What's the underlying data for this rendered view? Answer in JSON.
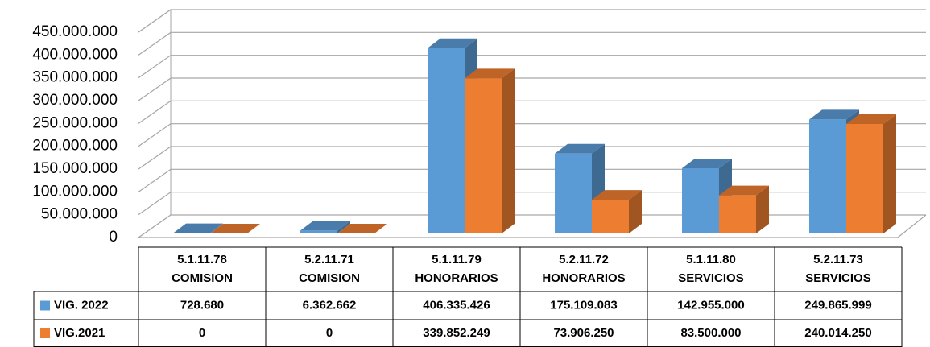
{
  "chart_data": {
    "type": "bar3d",
    "categories": [
      [
        "5.1.11.78",
        "COMISION"
      ],
      [
        "5.2.11.71",
        "COMISION"
      ],
      [
        "5.1.11.79",
        "HONORARIOS"
      ],
      [
        "5.2.11.72",
        "HONORARIOS"
      ],
      [
        "5.1.11.80",
        "SERVICIOS"
      ],
      [
        "5.2.11.73",
        "SERVICIOS"
      ]
    ],
    "series": [
      {
        "name": "VIG. 2022",
        "color": "#5b9bd5",
        "values": [
          728680,
          6362662,
          406335426,
          175109083,
          142955000,
          249865999
        ],
        "value_labels": [
          "728.680",
          "6.362.662",
          "406.335.426",
          "175.109.083",
          "142.955.000",
          "249.865.999"
        ]
      },
      {
        "name": "VIG.2021",
        "color": "#ed7d31",
        "values": [
          0,
          0,
          339852249,
          73906250,
          83500000,
          240014250
        ],
        "value_labels": [
          "0",
          "0",
          "339.852.249",
          "73.906.250",
          "83.500.000",
          "240.014.250"
        ]
      }
    ],
    "ylim": [
      0,
      450000000
    ],
    "yticks": [
      0,
      {
        "value": 50000000,
        "label": "50.000.000"
      },
      {
        "value": 100000000,
        "label": "100.000.000"
      },
      {
        "value": 150000000,
        "label": "150.000.000"
      },
      {
        "value": 200000000,
        "label": "200.000.000"
      },
      {
        "value": 250000000,
        "label": "250.000.000"
      },
      {
        "value": 300000000,
        "label": "300.000.000"
      },
      {
        "value": 350000000,
        "label": "350.000.000"
      },
      {
        "value": 400000000,
        "label": "400.000.000"
      },
      {
        "value": 450000000,
        "label": "450.000.000"
      }
    ],
    "grid": true,
    "data_table": true
  }
}
